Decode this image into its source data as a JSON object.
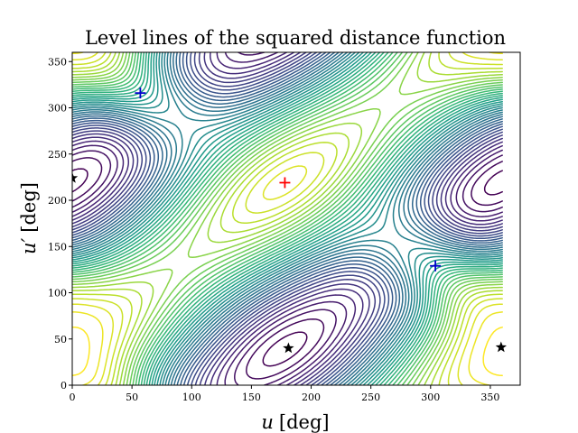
{
  "chart_data": {
    "type": "contour",
    "title": "Level lines of the squared distance function",
    "xlabel_var": "u",
    "xlabel_unit": "[deg]",
    "ylabel_var": "u′",
    "ylabel_unit": "[deg]",
    "xlim": [
      0,
      375
    ],
    "ylim": [
      0,
      360
    ],
    "xticks": [
      0,
      50,
      100,
      150,
      200,
      250,
      300,
      350
    ],
    "yticks": [
      0,
      50,
      100,
      150,
      200,
      250,
      300,
      350
    ],
    "grid": false,
    "colormap": "viridis",
    "num_levels": 40,
    "markers": [
      {
        "name": "global-maximum",
        "symbol": "plus",
        "color": "#ff0000",
        "x": 178,
        "y": 219
      },
      {
        "name": "local-minimum-1",
        "symbol": "plus",
        "color": "#0000cc",
        "x": 57,
        "y": 316
      },
      {
        "name": "local-minimum-2",
        "symbol": "plus",
        "color": "#0000cc",
        "x": 304,
        "y": 129
      },
      {
        "name": "saddle-1",
        "symbol": "star",
        "color": "#000000",
        "x": 0,
        "y": 224
      },
      {
        "name": "saddle-2",
        "symbol": "star",
        "color": "#000000",
        "x": 181,
        "y": 40
      },
      {
        "name": "saddle-3",
        "symbol": "star",
        "color": "#000000",
        "x": 359,
        "y": 41
      }
    ]
  }
}
